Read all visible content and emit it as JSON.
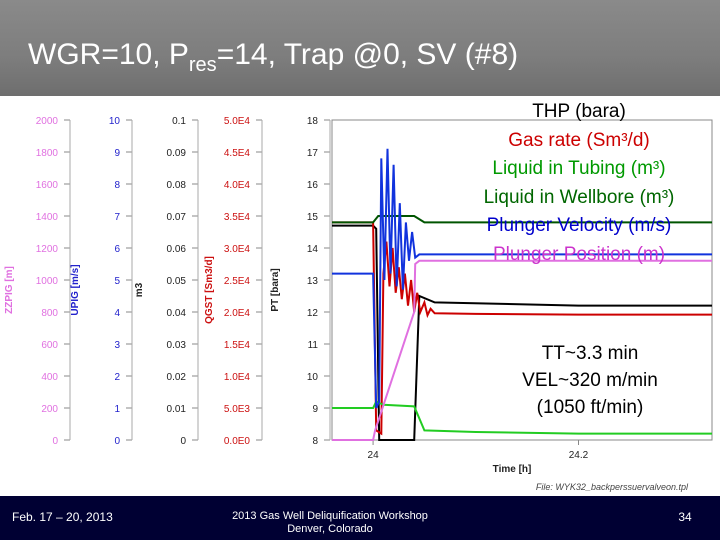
{
  "slide": {
    "title_main": "WGR=10, P",
    "title_sub": "res",
    "title_rest": "=14, Trap @0, SV (#8)"
  },
  "legend": [
    {
      "text": "THP (bara)",
      "color": "#000000"
    },
    {
      "text": "Gas rate (Sm³/d)",
      "color": "#cc0000"
    },
    {
      "text": "Liquid in Tubing (m³)",
      "color": "#009900"
    },
    {
      "text": "Liquid in Wellbore (m³)",
      "color": "#006600"
    },
    {
      "text": "Plunger Velocity (m/s)",
      "color": "#0000cc"
    },
    {
      "text": "Plunger Position (m)",
      "color": "#cc33cc"
    }
  ],
  "annotation": [
    "TT~3.3 min",
    "VEL~320 m/min",
    "(1050 ft/min)"
  ],
  "footer": {
    "date": "Feb. 17 – 20, 2013",
    "event_line1": "2013 Gas Well Deliquification Workshop",
    "event_line2": "Denver, Colorado",
    "page": "34"
  },
  "chart_data": {
    "type": "line",
    "xlabel": "Time [h]",
    "x_ticks": [
      "24",
      "24.2"
    ],
    "x_range": [
      23.96,
      24.33
    ],
    "file_label": "File: WYK32_backperssuervalveon.tpl",
    "axes": [
      {
        "id": "zzpig",
        "label": "ZZPIG [m]",
        "color": "#e070e0",
        "ticks": [
          "2000",
          "1800",
          "1600",
          "1400",
          "1200",
          "1000",
          "800",
          "600",
          "400",
          "200",
          "0"
        ],
        "min": 0,
        "max": 2000
      },
      {
        "id": "upig",
        "label": "UPIG [m/s]",
        "color": "#2222cc",
        "ticks": [
          "10",
          "9",
          "8",
          "7",
          "6",
          "5",
          "4",
          "3",
          "2",
          "1",
          "0"
        ],
        "min": 0,
        "max": 10
      },
      {
        "id": "m3",
        "label": "m3",
        "color": "#222222",
        "ticks": [
          "0.1",
          "0.09",
          "0.08",
          "0.07",
          "0.06",
          "0.05",
          "0.04",
          "0.03",
          "0.02",
          "0.01",
          "0"
        ],
        "min": 0,
        "max": 0.1
      },
      {
        "id": "qgst",
        "label": "QGST [Sm3/d]",
        "color": "#cc1111",
        "ticks": [
          "5.0E4",
          "4.5E4",
          "4.0E4",
          "3.5E4",
          "3.0E4",
          "2.5E4",
          "2.0E4",
          "1.5E4",
          "1.0E4",
          "5.0E3",
          "0.0E0"
        ],
        "min": 0,
        "max": 50000
      },
      {
        "id": "pt",
        "label": "PT [bara]",
        "color": "#222222",
        "ticks": [
          "18",
          "17",
          "16",
          "15",
          "14",
          "13",
          "12",
          "11",
          "10",
          "9",
          "8"
        ],
        "min": 8,
        "max": 18
      }
    ],
    "series": [
      {
        "color": "#000000",
        "axis": "pt",
        "points": [
          [
            23.96,
            14.7
          ],
          [
            24.0,
            14.7
          ],
          [
            24.003,
            14.6
          ],
          [
            24.006,
            8.0
          ],
          [
            24.04,
            8.0
          ],
          [
            24.045,
            12.5
          ],
          [
            24.06,
            12.3
          ],
          [
            24.2,
            12.2
          ],
          [
            24.33,
            12.2
          ]
        ]
      },
      {
        "color": "#cc0000",
        "axis": "qgst",
        "points": [
          [
            23.96,
            34000
          ],
          [
            24.0,
            34000
          ],
          [
            24.003,
            1500
          ],
          [
            24.008,
            1000
          ],
          [
            24.01,
            26000
          ],
          [
            24.013,
            31000
          ],
          [
            24.016,
            24000
          ],
          [
            24.019,
            30000
          ],
          [
            24.022,
            23000
          ],
          [
            24.025,
            27000
          ],
          [
            24.028,
            22000
          ],
          [
            24.031,
            26000
          ],
          [
            24.034,
            21000
          ],
          [
            24.037,
            25000
          ],
          [
            24.04,
            20000
          ],
          [
            24.043,
            23000
          ],
          [
            24.046,
            20000
          ],
          [
            24.05,
            21500
          ],
          [
            24.053,
            19500
          ],
          [
            24.056,
            20500
          ],
          [
            24.06,
            19800
          ],
          [
            24.1,
            19700
          ],
          [
            24.2,
            19600
          ],
          [
            24.33,
            19600
          ]
        ]
      },
      {
        "color": "#22cc22",
        "axis": "m3",
        "points": [
          [
            23.96,
            0.01
          ],
          [
            24.0,
            0.01
          ],
          [
            24.003,
            0.012
          ],
          [
            24.01,
            0.011
          ],
          [
            24.04,
            0.0105
          ],
          [
            24.05,
            0.003
          ],
          [
            24.1,
            0.0025
          ],
          [
            24.2,
            0.002
          ],
          [
            24.33,
            0.002
          ]
        ]
      },
      {
        "color": "#005500",
        "axis": "m3",
        "points": [
          [
            23.96,
            0.068
          ],
          [
            24.0,
            0.068
          ],
          [
            24.005,
            0.07
          ],
          [
            24.04,
            0.07
          ],
          [
            24.05,
            0.068
          ],
          [
            24.2,
            0.068
          ],
          [
            24.33,
            0.068
          ]
        ]
      },
      {
        "color": "#1133dd",
        "axis": "upig",
        "points": [
          [
            23.96,
            5.2
          ],
          [
            24.0,
            5.2
          ],
          [
            24.003,
            1.0
          ],
          [
            24.006,
            1.2
          ],
          [
            24.008,
            8.8
          ],
          [
            24.011,
            5.0
          ],
          [
            24.014,
            9.1
          ],
          [
            24.017,
            5.2
          ],
          [
            24.02,
            8.6
          ],
          [
            24.023,
            4.8
          ],
          [
            24.026,
            7.4
          ],
          [
            24.029,
            4.7
          ],
          [
            24.032,
            6.8
          ],
          [
            24.035,
            5.6
          ],
          [
            24.038,
            6.5
          ],
          [
            24.041,
            5.7
          ],
          [
            24.045,
            5.8
          ],
          [
            24.33,
            5.8
          ]
        ]
      },
      {
        "color": "#e070e0",
        "axis": "zzpig",
        "points": [
          [
            23.96,
            0
          ],
          [
            24.0,
            0
          ],
          [
            24.002,
            60
          ],
          [
            24.04,
            800
          ],
          [
            24.041,
            1100
          ],
          [
            24.045,
            1120
          ],
          [
            24.33,
            1120
          ]
        ]
      }
    ]
  }
}
